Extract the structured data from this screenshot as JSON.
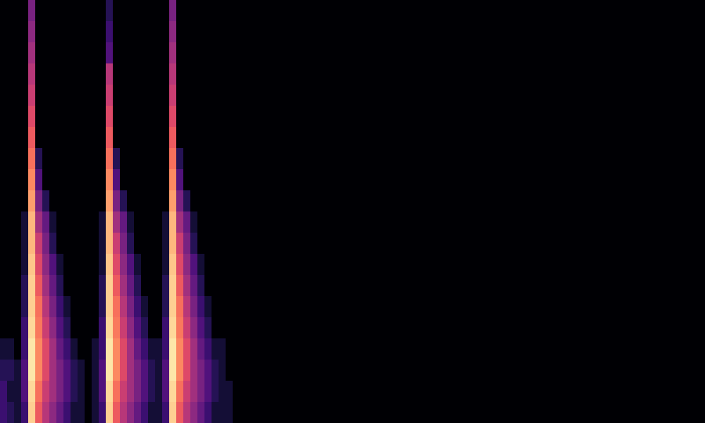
{
  "chart_data": {
    "type": "heatmap",
    "tick_labels": false,
    "color": "magma",
    "color_range": [
      0,
      1
    ],
    "xlim": [
      0,
      1000
    ],
    "ylim": [
      0,
      600
    ],
    "x_edges": [
      0,
      10,
      20,
      30,
      40,
      50,
      60,
      70,
      80,
      90,
      100,
      110,
      120,
      130,
      140,
      150,
      160,
      170,
      180,
      190,
      200,
      210,
      220,
      230,
      240,
      250,
      260,
      270,
      280,
      290,
      300,
      310,
      320,
      330,
      340,
      350,
      360
    ],
    "y_edges": [
      0,
      30,
      60,
      90,
      120,
      150,
      180,
      210,
      240,
      270,
      300,
      330,
      360,
      390,
      420,
      450,
      480,
      510,
      540,
      570,
      600
    ],
    "z": [
      [
        0.2,
        0.15,
        0.1,
        0.2,
        0.9,
        0.65,
        0.5,
        0.4,
        0.3,
        0.2,
        0.1,
        0.1,
        0,
        0.1,
        0.2,
        0.9,
        0.65,
        0.5,
        0.4,
        0.3,
        0.2,
        0.1,
        0.1,
        0.2,
        0.9,
        0.65,
        0.5,
        0.4,
        0.3,
        0.2,
        0.1,
        0.1,
        0.1,
        0,
        0,
        0
      ],
      [
        0.2,
        0.1,
        0.1,
        0.25,
        0.92,
        0.7,
        0.55,
        0.45,
        0.35,
        0.25,
        0.15,
        0.1,
        0,
        0.1,
        0.25,
        0.92,
        0.7,
        0.55,
        0.45,
        0.35,
        0.25,
        0.15,
        0.1,
        0.25,
        0.92,
        0.7,
        0.55,
        0.45,
        0.35,
        0.25,
        0.15,
        0.1,
        0.1,
        0,
        0,
        0
      ],
      [
        0.15,
        0.15,
        0.1,
        0.25,
        0.95,
        0.75,
        0.6,
        0.45,
        0.35,
        0.25,
        0.15,
        0.1,
        0,
        0.1,
        0.25,
        0.95,
        0.75,
        0.6,
        0.45,
        0.35,
        0.25,
        0.15,
        0.1,
        0.25,
        0.95,
        0.75,
        0.6,
        0.45,
        0.35,
        0.25,
        0.15,
        0.1,
        0,
        0,
        0,
        0
      ],
      [
        0.1,
        0.1,
        0,
        0.2,
        0.95,
        0.75,
        0.6,
        0.45,
        0.3,
        0.2,
        0.1,
        0,
        0,
        0.1,
        0.2,
        0.95,
        0.75,
        0.6,
        0.45,
        0.3,
        0.2,
        0.1,
        0.1,
        0.2,
        0.95,
        0.75,
        0.6,
        0.45,
        0.3,
        0.2,
        0.1,
        0.1,
        0,
        0,
        0,
        0
      ],
      [
        0,
        0,
        0,
        0.2,
        0.92,
        0.72,
        0.55,
        0.4,
        0.25,
        0.15,
        0,
        0,
        0,
        0,
        0.2,
        0.92,
        0.72,
        0.55,
        0.4,
        0.25,
        0.15,
        0,
        0,
        0.2,
        0.92,
        0.72,
        0.55,
        0.4,
        0.25,
        0.15,
        0,
        0,
        0,
        0,
        0,
        0
      ],
      [
        0,
        0,
        0,
        0.15,
        0.9,
        0.7,
        0.5,
        0.35,
        0.2,
        0.1,
        0,
        0,
        0,
        0,
        0.15,
        0.9,
        0.7,
        0.5,
        0.35,
        0.2,
        0.1,
        0,
        0,
        0.15,
        0.9,
        0.7,
        0.5,
        0.35,
        0.2,
        0.1,
        0,
        0,
        0,
        0,
        0,
        0
      ],
      [
        0,
        0,
        0,
        0.15,
        0.9,
        0.65,
        0.45,
        0.3,
        0.15,
        0,
        0,
        0,
        0,
        0,
        0.15,
        0.9,
        0.65,
        0.45,
        0.3,
        0.15,
        0,
        0,
        0,
        0.15,
        0.9,
        0.65,
        0.45,
        0.3,
        0.15,
        0,
        0,
        0,
        0,
        0,
        0,
        0
      ],
      [
        0,
        0,
        0,
        0.1,
        0.88,
        0.6,
        0.4,
        0.25,
        0.1,
        0,
        0,
        0,
        0,
        0,
        0.1,
        0.88,
        0.6,
        0.4,
        0.25,
        0.1,
        0,
        0,
        0,
        0.1,
        0.88,
        0.6,
        0.4,
        0.25,
        0.1,
        0,
        0,
        0,
        0,
        0,
        0,
        0
      ],
      [
        0,
        0,
        0,
        0.1,
        0.85,
        0.55,
        0.35,
        0.15,
        0,
        0,
        0,
        0,
        0,
        0,
        0.1,
        0.85,
        0.55,
        0.35,
        0.15,
        0,
        0,
        0,
        0,
        0.1,
        0.85,
        0.55,
        0.35,
        0.15,
        0,
        0,
        0,
        0,
        0,
        0,
        0,
        0
      ],
      [
        0,
        0,
        0,
        0.1,
        0.85,
        0.45,
        0.3,
        0.1,
        0,
        0,
        0,
        0,
        0,
        0,
        0.1,
        0.85,
        0.45,
        0.3,
        0.1,
        0,
        0,
        0,
        0,
        0.1,
        0.85,
        0.45,
        0.3,
        0.1,
        0,
        0,
        0,
        0,
        0,
        0,
        0,
        0
      ],
      [
        0,
        0,
        0,
        0,
        0.8,
        0.35,
        0.15,
        0,
        0,
        0,
        0,
        0,
        0,
        0,
        0,
        0.8,
        0.35,
        0.15,
        0,
        0,
        0,
        0,
        0,
        0,
        0.8,
        0.35,
        0.15,
        0,
        0,
        0,
        0,
        0,
        0,
        0,
        0,
        0
      ],
      [
        0,
        0,
        0,
        0,
        0.75,
        0.25,
        0,
        0,
        0,
        0,
        0,
        0,
        0,
        0,
        0,
        0.75,
        0.25,
        0,
        0,
        0,
        0,
        0,
        0,
        0,
        0.75,
        0.25,
        0,
        0,
        0,
        0,
        0,
        0,
        0,
        0,
        0,
        0
      ],
      [
        0,
        0,
        0,
        0,
        0.7,
        0.15,
        0,
        0,
        0,
        0,
        0,
        0,
        0,
        0,
        0,
        0.7,
        0.15,
        0,
        0,
        0,
        0,
        0,
        0,
        0,
        0.7,
        0.15,
        0,
        0,
        0,
        0,
        0,
        0,
        0,
        0,
        0,
        0
      ],
      [
        0,
        0,
        0,
        0,
        0.65,
        0,
        0,
        0,
        0,
        0,
        0,
        0,
        0,
        0,
        0,
        0.65,
        0,
        0,
        0,
        0,
        0,
        0,
        0,
        0,
        0.65,
        0,
        0,
        0,
        0,
        0,
        0,
        0,
        0,
        0,
        0,
        0
      ],
      [
        0,
        0,
        0,
        0,
        0.6,
        0,
        0,
        0,
        0,
        0,
        0,
        0,
        0,
        0,
        0,
        0.6,
        0,
        0,
        0,
        0,
        0,
        0,
        0,
        0,
        0.6,
        0,
        0,
        0,
        0,
        0,
        0,
        0,
        0,
        0,
        0,
        0
      ],
      [
        0,
        0,
        0,
        0,
        0.55,
        0,
        0,
        0,
        0,
        0,
        0,
        0,
        0,
        0,
        0,
        0.55,
        0,
        0,
        0,
        0,
        0,
        0,
        0,
        0,
        0.55,
        0,
        0,
        0,
        0,
        0,
        0,
        0,
        0,
        0,
        0,
        0
      ],
      [
        0,
        0,
        0,
        0,
        0.5,
        0,
        0,
        0,
        0,
        0,
        0,
        0,
        0,
        0,
        0,
        0.5,
        0,
        0,
        0,
        0,
        0,
        0,
        0,
        0,
        0.5,
        0,
        0,
        0,
        0,
        0,
        0,
        0,
        0,
        0,
        0,
        0
      ],
      [
        0,
        0,
        0,
        0,
        0.45,
        0,
        0,
        0,
        0,
        0,
        0,
        0,
        0,
        0,
        0,
        0.25,
        0,
        0,
        0,
        0,
        0,
        0,
        0,
        0,
        0.45,
        0,
        0,
        0,
        0,
        0,
        0,
        0,
        0,
        0,
        0,
        0
      ],
      [
        0,
        0,
        0,
        0,
        0.4,
        0,
        0,
        0,
        0,
        0,
        0,
        0,
        0,
        0,
        0,
        0.2,
        0,
        0,
        0,
        0,
        0,
        0,
        0,
        0,
        0.4,
        0,
        0,
        0,
        0,
        0,
        0,
        0,
        0,
        0,
        0,
        0
      ],
      [
        0,
        0,
        0,
        0,
        0.35,
        0,
        0,
        0,
        0,
        0,
        0,
        0,
        0,
        0,
        0,
        0.15,
        0,
        0,
        0,
        0,
        0,
        0,
        0,
        0,
        0.35,
        0,
        0,
        0,
        0,
        0,
        0,
        0,
        0,
        0,
        0,
        0
      ]
    ]
  }
}
